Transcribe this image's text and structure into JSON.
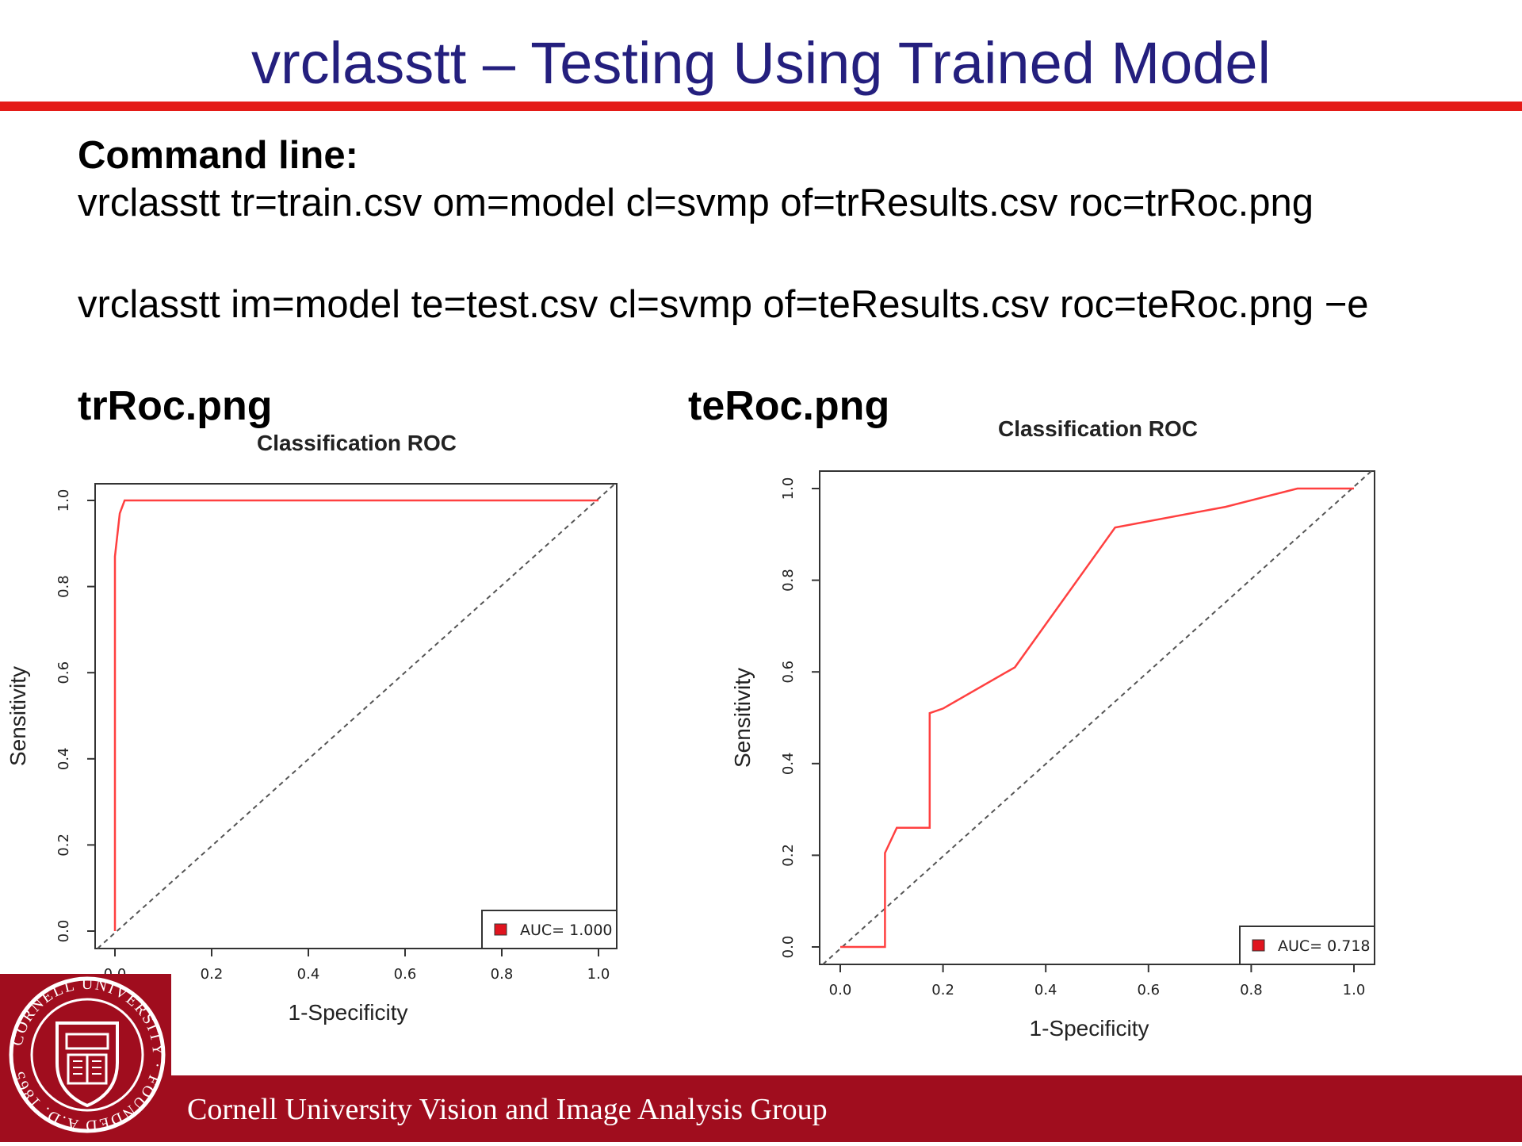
{
  "slide": {
    "title": "vrclasstt – Testing Using Trained Model",
    "command_heading": "Command line:",
    "command_train": "vrclasstt tr=train.csv om=model cl=svmp of=trResults.csv roc=trRoc.png",
    "command_test": "vrclasstt im=model te=test.csv cl=svmp of=teResults.csv roc=teRoc.png −e",
    "fig_left_label": "trRoc.png",
    "fig_right_label": "teRoc.png"
  },
  "footer": {
    "text": "Cornell University   Vision and Image Analysis Group",
    "logo_ring_text": "CORNELL UNIVERSITY · FOUNDED A.D. 1865",
    "color": "#a00d1e"
  },
  "colors": {
    "title": "#241f7e",
    "rule": "#e41b17",
    "roc_curve": "#ff4040",
    "diagonal": "#555555"
  },
  "chart_data": [
    {
      "type": "line",
      "title": "Classification ROC",
      "xlabel": "1-Specificity",
      "ylabel": "Sensitivity",
      "xlim": [
        0,
        1
      ],
      "ylim": [
        0,
        1
      ],
      "xticks": [
        "0.0",
        "0.2",
        "0.4",
        "0.6",
        "0.8",
        "1.0"
      ],
      "yticks": [
        "0.0",
        "0.2",
        "0.4",
        "0.6",
        "0.8",
        "1.0"
      ],
      "grid": false,
      "legend_position": "bottom-right",
      "legend_text": "AUC= 1.000",
      "series": [
        {
          "x": [
            0.0,
            0.0,
            0.0,
            0.01,
            0.02,
            1.0
          ],
          "y": [
            0.0,
            0.85,
            0.87,
            0.97,
            1.0,
            1.0
          ]
        }
      ],
      "reference_line": {
        "x": [
          0,
          1
        ],
        "y": [
          0,
          1
        ]
      }
    },
    {
      "type": "line",
      "title": "Classification ROC",
      "xlabel": "1-Specificity",
      "ylabel": "Sensitivity",
      "xlim": [
        0,
        1
      ],
      "ylim": [
        0,
        1
      ],
      "xticks": [
        "0.0",
        "0.2",
        "0.4",
        "0.6",
        "0.8",
        "1.0"
      ],
      "yticks": [
        "0.0",
        "0.2",
        "0.4",
        "0.6",
        "0.8",
        "1.0"
      ],
      "grid": false,
      "legend_position": "bottom-right",
      "legend_text": "AUC= 0.718",
      "series": [
        {
          "x": [
            0.0,
            0.087,
            0.087,
            0.11,
            0.174,
            0.174,
            0.174,
            0.2,
            0.34,
            0.535,
            0.75,
            0.89,
            1.0
          ],
          "y": [
            0.0,
            0.0,
            0.205,
            0.26,
            0.26,
            0.29,
            0.51,
            0.52,
            0.61,
            0.915,
            0.96,
            1.0,
            1.0
          ]
        }
      ],
      "reference_line": {
        "x": [
          0,
          1
        ],
        "y": [
          0,
          1
        ]
      }
    }
  ]
}
